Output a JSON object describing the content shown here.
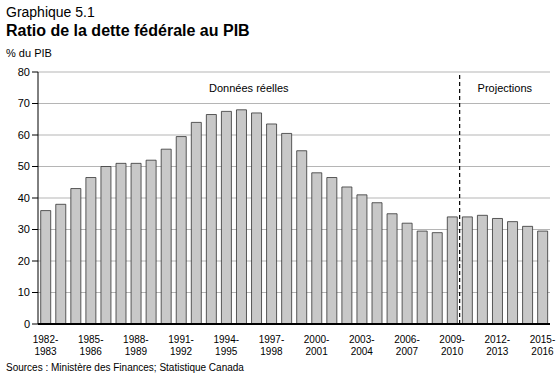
{
  "chart_data": {
    "type": "bar",
    "figure_number": "Graphique 5.1",
    "title": "Ratio de la dette fédérale au PIB",
    "y_label": "% du PIB",
    "annotations": [
      "Données réelles",
      "Projections"
    ],
    "source": "Sources : Ministère des Finances; Statistique Canada",
    "categories": [
      "1982-1983",
      null,
      null,
      "1985-1986",
      null,
      null,
      "1988-1989",
      null,
      null,
      "1991-1992",
      null,
      null,
      "1994-1995",
      null,
      null,
      "1997-1998",
      null,
      null,
      "2000-2001",
      null,
      null,
      "2003-2004",
      null,
      null,
      "2006-2007",
      null,
      null,
      "2009-2010",
      null,
      null,
      "2012-2013",
      null,
      null,
      "2015-2016"
    ],
    "values": [
      36,
      38,
      43,
      46.5,
      50,
      51,
      51,
      52,
      55.5,
      59.5,
      64,
      66.5,
      67.5,
      68,
      67,
      63.5,
      60.5,
      55,
      48,
      46.5,
      43.5,
      41,
      38.5,
      35,
      32,
      29.5,
      29,
      34,
      34,
      34.5,
      33.5,
      32.5,
      31,
      29.5
    ],
    "color": "#c8c8c8",
    "ylim": [
      0,
      80
    ],
    "yticks": [
      0,
      10,
      20,
      30,
      40,
      50,
      60,
      70,
      80
    ],
    "grid": true
  }
}
